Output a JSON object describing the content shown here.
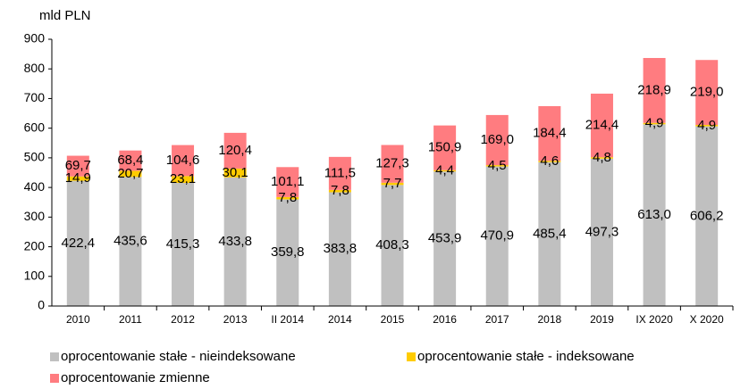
{
  "chart_data": {
    "type": "bar",
    "stacked": true,
    "y_label": "mld PLN",
    "categories": [
      "2010",
      "2011",
      "2012",
      "2013",
      "II 2014",
      "2014",
      "2015",
      "2016",
      "2017",
      "2018",
      "2019",
      "IX 2020",
      "X 2020"
    ],
    "series": [
      {
        "name": "oprocentowanie stałe - nieindeksowane",
        "color": "#c0c0c0",
        "values": [
          422.4,
          435.6,
          415.3,
          433.8,
          359.8,
          383.8,
          408.3,
          453.9,
          470.9,
          485.4,
          497.3,
          613.0,
          606.2
        ],
        "value_labels": [
          "422,4",
          "435,6",
          "415,3",
          "433,8",
          "359,8",
          "383,8",
          "408,3",
          "453,9",
          "470,9",
          "485,4",
          "497,3",
          "613,0",
          "606,2"
        ]
      },
      {
        "name": "oprocentowanie stałe - indeksowane",
        "color": "#ffcc00",
        "values": [
          14.9,
          20.7,
          23.1,
          30.1,
          7.8,
          7.8,
          7.7,
          4.4,
          4.5,
          4.6,
          4.8,
          4.9,
          4.9
        ],
        "value_labels": [
          "14,9",
          "20,7",
          "23,1",
          "30,1",
          "7,8",
          "7,8",
          "7,7",
          "4,4",
          "4,5",
          "4,6",
          "4,8",
          "4,9",
          "4,9"
        ]
      },
      {
        "name": "oprocentowanie zmienne",
        "color": "#ff7c80",
        "values": [
          69.7,
          68.4,
          104.6,
          120.4,
          101.1,
          111.5,
          127.3,
          150.9,
          169.0,
          184.4,
          214.4,
          218.9,
          219.0
        ],
        "value_labels": [
          "69,7",
          "68,4",
          "104,6",
          "120,4",
          "101,1",
          "111,5",
          "127,3",
          "150,9",
          "169,0",
          "184,4",
          "214,4",
          "218,9",
          "219,0"
        ]
      }
    ],
    "ylim": [
      0,
      900
    ],
    "yticks": [
      0,
      100,
      200,
      300,
      400,
      500,
      600,
      700,
      800,
      900
    ],
    "grid": false
  }
}
